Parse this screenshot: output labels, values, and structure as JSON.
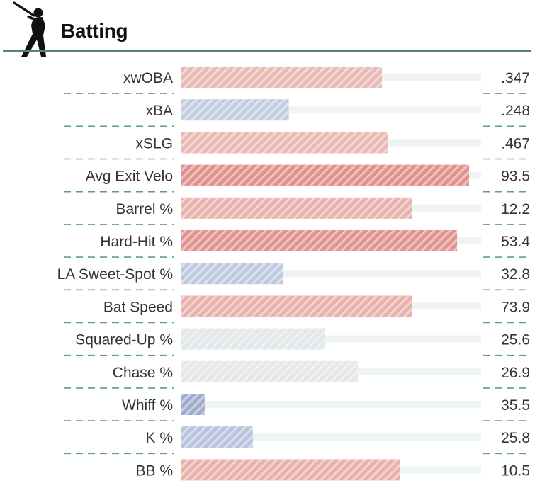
{
  "header": {
    "title": "Batting",
    "icon": "baseball-batter-icon",
    "rule_color": "#4f8787"
  },
  "colors": {
    "track": "#eef3f4",
    "separator": "#5f9a9a",
    "label": "#333333",
    "value": "#333333"
  },
  "chart_data": {
    "type": "bar",
    "orientation": "horizontal",
    "range": [
      0,
      100
    ],
    "categories": [
      "xwOBA",
      "xBA",
      "xSLG",
      "Avg Exit Velo",
      "Barrel %",
      "Hard-Hit %",
      "LA Sweet-Spot %",
      "Bat Speed",
      "Squared-Up %",
      "Chase %",
      "Whiff %",
      "K %",
      "BB %"
    ],
    "value_labels": [
      ".347",
      ".248",
      ".467",
      "93.5",
      "12.2",
      "53.4",
      "32.8",
      "73.9",
      "25.6",
      "26.9",
      "35.5",
      "25.8",
      "10.5"
    ],
    "percentiles": [
      67,
      36,
      69,
      96,
      77,
      92,
      34,
      77,
      48,
      59,
      8,
      24,
      73
    ],
    "bar_colors": [
      "#eab9b4",
      "#c3cde0",
      "#eab9b4",
      "#e1908c",
      "#e8b1ab",
      "#e1938e",
      "#bdc9df",
      "#e8b1ab",
      "#e2e7e9",
      "#e6e6e6",
      "#9eaccc",
      "#b8c2dd",
      "#e8b1ab"
    ]
  }
}
